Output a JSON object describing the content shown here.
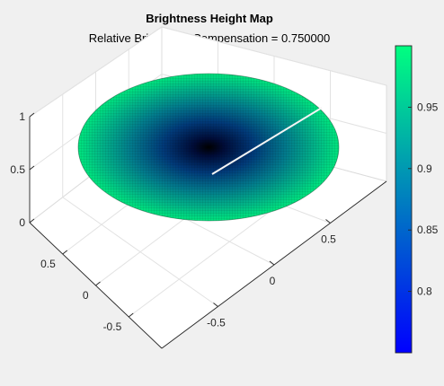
{
  "chart_data": {
    "type": "surface",
    "title": "Brightness Height Map",
    "subtitle": "Relative Brightness Compensation = 0.750000",
    "zlim": [
      0,
      1
    ],
    "z_ticks": [
      "0",
      "0.5",
      "1"
    ],
    "x_ticks": [
      "-0.5",
      "0",
      "0.5"
    ],
    "y_ticks": [
      "-0.5",
      "0",
      "0.5"
    ],
    "grid": true,
    "surface": {
      "shape": "disk",
      "radius": 1,
      "z_center": 0.5,
      "z_edge": 0.5,
      "color_center": 0.75,
      "color_edge": 1.0
    },
    "colorbar": {
      "range": [
        0.75,
        1.0
      ],
      "ticks": [
        "0.8",
        "0.85",
        "0.9",
        "0.95"
      ],
      "colors": [
        "#0000ff",
        "#00ff80"
      ],
      "placement": "right"
    }
  }
}
